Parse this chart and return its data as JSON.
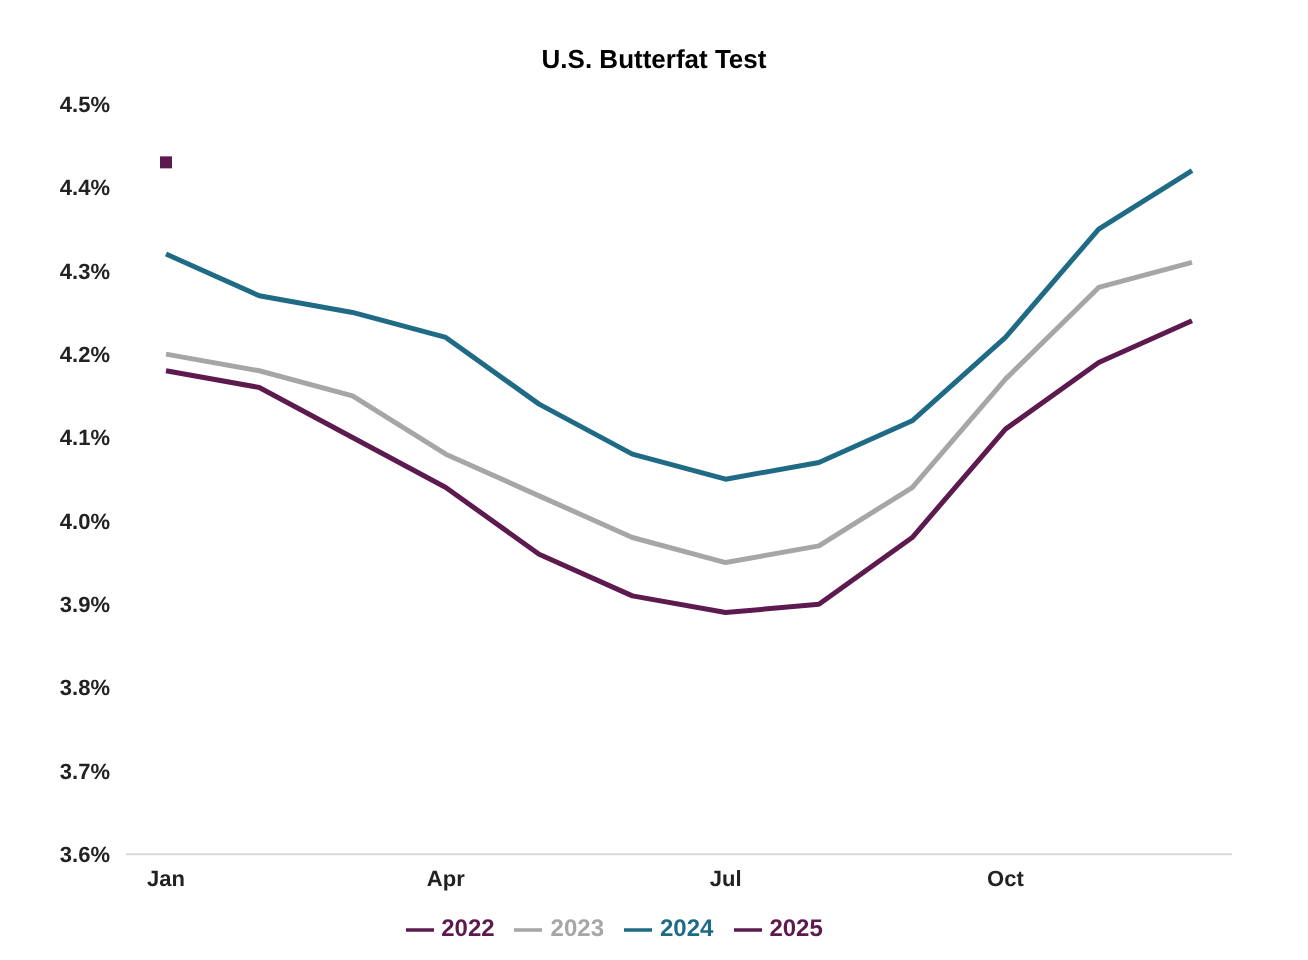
{
  "chart_data": {
    "type": "line",
    "title": "U.S. Butterfat Test",
    "categories": [
      "Jan",
      null,
      null,
      "Apr",
      null,
      null,
      "Jul",
      null,
      null,
      "Oct",
      null,
      null
    ],
    "series": [
      {
        "name": "2022",
        "color": "#5c1a4f",
        "marker": "none",
        "values": [
          4.18,
          4.16,
          4.1,
          4.04,
          3.96,
          3.91,
          3.89,
          3.9,
          3.98,
          4.11,
          4.19,
          4.24
        ]
      },
      {
        "name": "2023",
        "color": "#a6a6a6",
        "marker": "none",
        "values": [
          4.2,
          4.18,
          4.15,
          4.08,
          4.03,
          3.98,
          3.95,
          3.97,
          4.04,
          4.17,
          4.28,
          4.31
        ]
      },
      {
        "name": "2024",
        "color": "#1f6b85",
        "marker": "none",
        "values": [
          4.32,
          4.27,
          4.25,
          4.22,
          4.14,
          4.08,
          4.05,
          4.07,
          4.12,
          4.22,
          4.35,
          4.42
        ]
      },
      {
        "name": "2025",
        "color": "#5c1a4f",
        "marker": "square",
        "values": [
          4.43,
          null,
          null,
          null,
          null,
          null,
          null,
          null,
          null,
          null,
          null,
          null
        ]
      }
    ],
    "ylim": [
      3.6,
      4.5
    ],
    "yticks": [
      {
        "value": 3.6,
        "label": "3.6%"
      },
      {
        "value": 3.7,
        "label": "3.7%"
      },
      {
        "value": 3.8,
        "label": "3.8%"
      },
      {
        "value": 3.9,
        "label": "3.9%"
      },
      {
        "value": 4.0,
        "label": "4.0%"
      },
      {
        "value": 4.1,
        "label": "4.1%"
      },
      {
        "value": 4.2,
        "label": "4.2%"
      },
      {
        "value": 4.3,
        "label": "4.3%"
      },
      {
        "value": 4.4,
        "label": "4.4%"
      },
      {
        "value": 4.5,
        "label": "4.5%"
      }
    ],
    "grid": false,
    "legend": "bottom"
  }
}
